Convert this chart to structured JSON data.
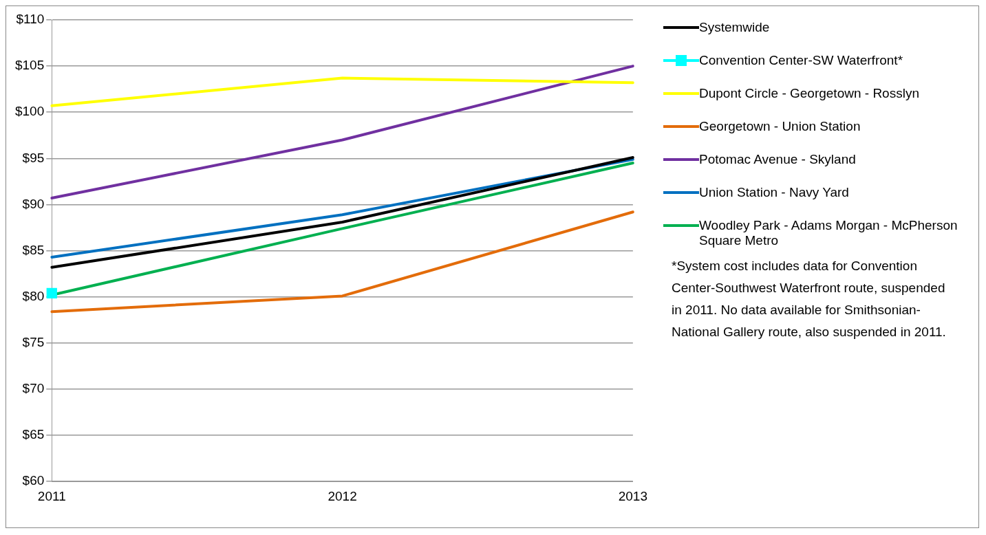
{
  "chart_data": {
    "type": "line",
    "categories": [
      "2011",
      "2012",
      "2013"
    ],
    "series": [
      {
        "name": "Systemwide",
        "color": "#000000",
        "values": [
          83.2,
          88.1,
          95.1
        ]
      },
      {
        "name": "Convention Center-SW Waterfront*",
        "color": "#00ffff",
        "values": [
          80.4,
          null,
          null
        ],
        "marker": "square"
      },
      {
        "name": "Dupont Circle - Georgetown - Rosslyn",
        "color": "#ffff00",
        "values": [
          100.7,
          103.7,
          103.2
        ]
      },
      {
        "name": "Georgetown - Union Station",
        "color": "#e36c0a",
        "values": [
          78.4,
          80.1,
          89.2
        ]
      },
      {
        "name": "Potomac Avenue - Skyland",
        "color": "#7030a0",
        "values": [
          90.7,
          97.0,
          105.0
        ]
      },
      {
        "name": "Union Station - Navy Yard",
        "color": "#0070c0",
        "values": [
          84.3,
          88.9,
          94.9
        ]
      },
      {
        "name": "Woodley Park - Adams Morgan - McPherson Square Metro",
        "color": "#00b050",
        "values": [
          80.2,
          87.4,
          94.5
        ]
      }
    ],
    "ylim": [
      60,
      110
    ],
    "yticks": [
      {
        "value": 60,
        "label": "$60"
      },
      {
        "value": 65,
        "label": "$65"
      },
      {
        "value": 70,
        "label": "$70"
      },
      {
        "value": 75,
        "label": "$75"
      },
      {
        "value": 80,
        "label": "$80"
      },
      {
        "value": 85,
        "label": "$85"
      },
      {
        "value": 90,
        "label": "$90"
      },
      {
        "value": 95,
        "label": "$95"
      },
      {
        "value": 100,
        "label": "$100"
      },
      {
        "value": 105,
        "label": "$105"
      },
      {
        "value": 110,
        "label": "$110"
      }
    ],
    "grid": "y",
    "legend": "top right",
    "marker": "none",
    "annotations": [
      "*System cost includes data for Convention Center-Southwest Waterfront route, suspended in 2011. No data available for Smithsonian-National Gallery route, also suspended in 2011."
    ]
  }
}
